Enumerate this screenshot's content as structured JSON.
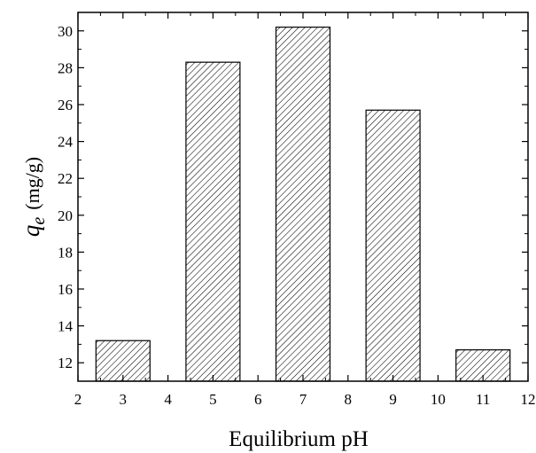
{
  "chart_data": {
    "type": "bar",
    "categories": [
      "3",
      "5",
      "7",
      "9",
      "11"
    ],
    "x": [
      3,
      5,
      7,
      9,
      11
    ],
    "values": [
      13.2,
      28.3,
      30.2,
      25.7,
      12.7
    ],
    "title": "",
    "xlabel": "Equilibrium pH",
    "ylabel": {
      "symbol": "q",
      "subscript": "e",
      "unit": "(mg/g)"
    },
    "xlim": [
      2,
      12
    ],
    "ylim": [
      11,
      31
    ],
    "xticks": [
      "2",
      "3",
      "4",
      "5",
      "6",
      "7",
      "8",
      "9",
      "10",
      "11",
      "12"
    ],
    "yticks": [
      "12",
      "14",
      "16",
      "18",
      "20",
      "22",
      "24",
      "26",
      "28",
      "30"
    ],
    "grid": false,
    "legend": "none",
    "bar_fill": "hatched",
    "bar_color": "#000000"
  }
}
